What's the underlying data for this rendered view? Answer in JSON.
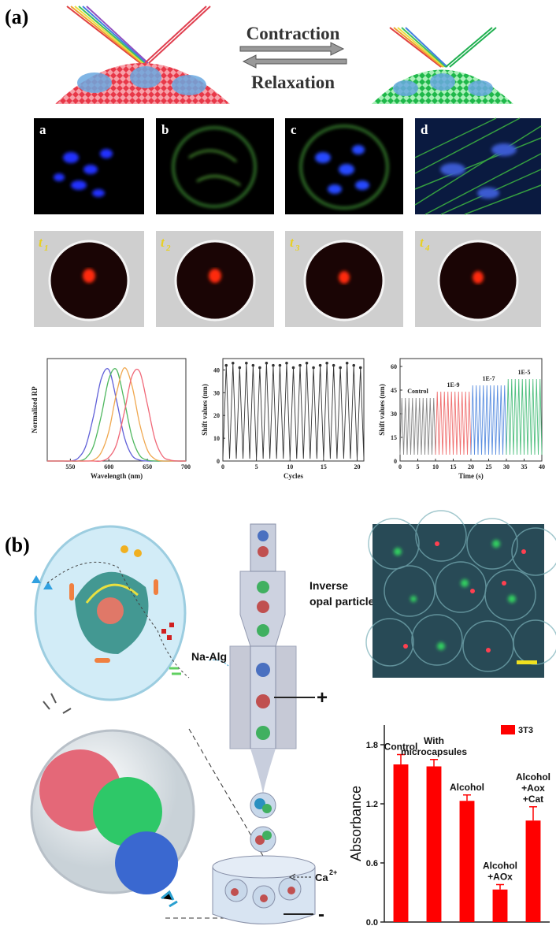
{
  "panel_a": {
    "label": "(a)",
    "schematic": {
      "top_arrow": "Contraction",
      "bottom_arrow": "Relaxation"
    },
    "stain_labels": [
      "a",
      "b",
      "c",
      "d"
    ],
    "time_labels": [
      {
        "symbol": "t",
        "index": "1"
      },
      {
        "symbol": "t",
        "index": "2"
      },
      {
        "symbol": "t",
        "index": "3"
      },
      {
        "symbol": "t",
        "index": "4"
      }
    ]
  },
  "panel_b": {
    "label": "(b)",
    "device": {
      "particles_label": [
        "Inverse",
        "opal particles"
      ],
      "sheath_label": "Na-Alg",
      "anode": "+",
      "bath_label": {
        "base": "Ca",
        "charge": "2+"
      },
      "cathode": "-"
    }
  },
  "chart_data": [
    {
      "type": "line",
      "smooth": true,
      "xlabel": "Wavelength (nm)",
      "ylabel": "Normalized RP",
      "x": [
        520,
        530,
        540,
        550,
        560,
        570,
        580,
        590,
        600,
        610,
        620,
        630,
        640,
        650,
        660,
        670,
        680,
        690,
        700
      ],
      "xlim": [
        520,
        700
      ],
      "xticks": [
        550,
        600,
        650,
        700
      ],
      "ylim": [
        0,
        1.1
      ],
      "series": [
        {
          "color": "#6060d8",
          "values": [
            0,
            0,
            0,
            0,
            0.03,
            0.16,
            0.48,
            0.88,
            0.98,
            0.65,
            0.26,
            0.06,
            0.01,
            0,
            0,
            0,
            0,
            0,
            0
          ]
        },
        {
          "color": "#50b860",
          "values": [
            0,
            0,
            0,
            0,
            0,
            0.03,
            0.16,
            0.48,
            0.88,
            0.98,
            0.65,
            0.26,
            0.06,
            0.01,
            0,
            0,
            0,
            0,
            0
          ]
        },
        {
          "color": "#f0a850",
          "values": [
            0,
            0,
            0,
            0,
            0,
            0,
            0.01,
            0.09,
            0.32,
            0.73,
            1.0,
            0.81,
            0.4,
            0.12,
            0.02,
            0,
            0,
            0,
            0
          ]
        },
        {
          "color": "#f06878",
          "values": [
            0,
            0,
            0,
            0,
            0,
            0,
            0,
            0,
            0.04,
            0.18,
            0.52,
            0.91,
            0.96,
            0.61,
            0.23,
            0.05,
            0.01,
            0,
            0
          ]
        }
      ]
    },
    {
      "type": "line",
      "markers": true,
      "color": "#333333",
      "xlabel": "Cycles",
      "ylabel": "Shift values (nm)",
      "x": [
        0,
        0.5,
        1,
        1.5,
        2,
        2.5,
        3,
        3.5,
        4,
        4.5,
        5,
        5.5,
        6,
        6.5,
        7,
        7.5,
        8,
        8.5,
        9,
        9.5,
        10,
        10.5,
        11,
        11.5,
        12,
        12.5,
        13,
        13.5,
        14,
        14.5,
        15,
        15.5,
        16,
        16.5,
        17,
        17.5,
        18,
        18.5,
        19,
        19.5,
        20,
        20.5,
        21
      ],
      "values": [
        1,
        42,
        1,
        43,
        1,
        41,
        1,
        43,
        1,
        42,
        1,
        41,
        1,
        43,
        1,
        42,
        1,
        42,
        1,
        43,
        1,
        41,
        1,
        42,
        1,
        43,
        1,
        41,
        1,
        42,
        1,
        43,
        1,
        42,
        1,
        41,
        1,
        43,
        1,
        42,
        1,
        41,
        1
      ],
      "xlim": [
        0,
        21
      ],
      "xticks": [
        0,
        5,
        10,
        15,
        20
      ],
      "ylim": [
        0,
        45
      ],
      "yticks": [
        0,
        10,
        20,
        30,
        40
      ]
    },
    {
      "type": "line",
      "xlabel": "Time (s)",
      "ylabel": "Shift values (nm)",
      "xlim": [
        0,
        40
      ],
      "xticks": [
        0,
        5,
        10,
        15,
        20,
        25,
        30,
        35,
        40
      ],
      "ylim": [
        0,
        65
      ],
      "yticks": [
        0,
        15,
        30,
        45,
        60
      ],
      "series": [
        {
          "name": "Control",
          "color": "#888888",
          "x": [
            0,
            0.5,
            1,
            1.5,
            2,
            2.5,
            3,
            3.5,
            4,
            4.5,
            5,
            5.5,
            6,
            6.5,
            7,
            7.5,
            8,
            8.5,
            9,
            9.5,
            10
          ],
          "values": [
            4,
            40,
            4,
            40,
            4,
            40,
            4,
            40,
            4,
            40,
            4,
            40,
            4,
            40,
            4,
            40,
            4,
            40,
            4,
            40,
            4
          ]
        },
        {
          "name": "1E-9",
          "color": "#f07070",
          "x": [
            10,
            10.5,
            11,
            11.5,
            12,
            12.5,
            13,
            13.5,
            14,
            14.5,
            15,
            15.5,
            16,
            16.5,
            17,
            17.5,
            18,
            18.5,
            19,
            19.5,
            20
          ],
          "values": [
            4,
            44,
            4,
            44,
            4,
            44,
            4,
            44,
            4,
            44,
            4,
            44,
            4,
            44,
            4,
            44,
            4,
            44,
            4,
            44,
            4
          ]
        },
        {
          "name": "1E-7",
          "color": "#5a8ee0",
          "x": [
            20,
            20.5,
            21,
            21.5,
            22,
            22.5,
            23,
            23.5,
            24,
            24.5,
            25,
            25.5,
            26,
            26.5,
            27,
            27.5,
            28,
            28.5,
            29,
            29.5,
            30
          ],
          "values": [
            4,
            48,
            4,
            48,
            4,
            48,
            4,
            48,
            4,
            48,
            4,
            48,
            4,
            48,
            4,
            48,
            4,
            48,
            4,
            48,
            4
          ]
        },
        {
          "name": "1E-5",
          "color": "#50c080",
          "x": [
            30,
            30.5,
            31,
            31.5,
            32,
            32.5,
            33,
            33.5,
            34,
            34.5,
            35,
            35.5,
            36,
            36.5,
            37,
            37.5,
            38,
            38.5,
            39,
            39.5,
            40
          ],
          "values": [
            4,
            52,
            4,
            52,
            4,
            52,
            4,
            52,
            4,
            52,
            4,
            52,
            4,
            52,
            4,
            52,
            4,
            52,
            4,
            52,
            4
          ]
        }
      ]
    },
    {
      "type": "bar",
      "ylabel": "Absorbance",
      "categories": [
        [
          "Control"
        ],
        [
          "With",
          "microcapsules"
        ],
        [
          "Alcohol"
        ],
        [
          "Alcohol",
          "+AOx"
        ],
        [
          "Alcohol",
          "+Aox",
          "+Cat"
        ]
      ],
      "series": [
        {
          "name": "3T3",
          "color": "#ff0000",
          "values": [
            1.6,
            1.58,
            1.23,
            0.33,
            1.03
          ],
          "errors": [
            0.1,
            0.07,
            0.06,
            0.05,
            0.14
          ]
        }
      ],
      "legend": "top-right",
      "ylim": [
        0,
        2.0
      ],
      "yticks": [
        {
          "value": 0,
          "label": "0.0"
        },
        {
          "value": 0.6,
          "label": "0.6"
        },
        {
          "value": 1.2,
          "label": "1.2"
        },
        {
          "value": 1.8,
          "label": "1.8"
        }
      ]
    }
  ]
}
